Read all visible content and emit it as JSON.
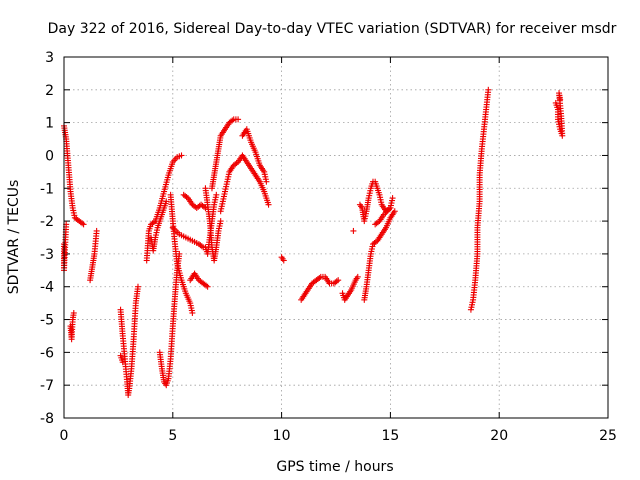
{
  "chart_data": {
    "type": "scatter",
    "title": "Day 322 of 2016, Sidereal Day-to-day VTEC variation (SDTVAR) for receiver msdr",
    "xlabel": "GPS time / hours",
    "ylabel": "SDTVAR / TECUs",
    "xlim": [
      0,
      25
    ],
    "ylim": [
      -8,
      3
    ],
    "xticks": [
      0,
      5,
      10,
      15,
      20,
      25
    ],
    "yticks": [
      -8,
      -7,
      -6,
      -5,
      -4,
      -3,
      -2,
      -1,
      0,
      1,
      2,
      3
    ],
    "grid": true,
    "marker": "+",
    "color": "#ee0000",
    "series": [
      {
        "name": "msdr",
        "segments": [
          [
            [
              0.0,
              0.9
            ],
            [
              0.1,
              0.5
            ],
            [
              0.2,
              -0.3
            ],
            [
              0.3,
              -1.1
            ],
            [
              0.4,
              -1.6
            ],
            [
              0.5,
              -1.9
            ],
            [
              0.7,
              -2.0
            ],
            [
              0.9,
              -2.1
            ]
          ],
          [
            [
              0.0,
              -2.7
            ],
            [
              0.0,
              -3.5
            ],
            [
              0.1,
              -2.1
            ]
          ],
          [
            [
              0.3,
              -5.2
            ],
            [
              0.35,
              -5.6
            ],
            [
              0.4,
              -5.0
            ],
            [
              0.45,
              -4.8
            ]
          ],
          [
            [
              1.2,
              -3.8
            ],
            [
              1.3,
              -3.4
            ],
            [
              1.4,
              -3.0
            ],
            [
              1.5,
              -2.3
            ]
          ],
          [
            [
              2.6,
              -4.7
            ],
            [
              2.7,
              -5.5
            ],
            [
              2.8,
              -6.2
            ],
            [
              2.9,
              -6.9
            ],
            [
              2.95,
              -7.3
            ],
            [
              3.0,
              -7.1
            ],
            [
              3.1,
              -6.5
            ],
            [
              3.2,
              -5.6
            ],
            [
              3.3,
              -4.5
            ],
            [
              3.4,
              -4.0
            ]
          ],
          [
            [
              2.6,
              -6.1
            ],
            [
              2.7,
              -6.3
            ]
          ],
          [
            [
              3.8,
              -3.2
            ],
            [
              3.9,
              -2.3
            ],
            [
              4.0,
              -2.1
            ],
            [
              4.2,
              -2.0
            ],
            [
              4.4,
              -1.6
            ],
            [
              4.6,
              -1.1
            ],
            [
              4.8,
              -0.6
            ],
            [
              5.0,
              -0.2
            ],
            [
              5.2,
              -0.05
            ],
            [
              5.4,
              0.0
            ]
          ],
          [
            [
              4.0,
              -2.5
            ],
            [
              4.1,
              -2.9
            ],
            [
              4.2,
              -2.5
            ],
            [
              4.3,
              -2.2
            ],
            [
              4.5,
              -1.8
            ],
            [
              4.7,
              -1.4
            ]
          ],
          [
            [
              4.4,
              -6.0
            ],
            [
              4.5,
              -6.5
            ],
            [
              4.6,
              -6.9
            ],
            [
              4.7,
              -7.0
            ],
            [
              4.8,
              -6.8
            ],
            [
              4.9,
              -6.2
            ],
            [
              5.0,
              -5.2
            ],
            [
              5.1,
              -4.3
            ],
            [
              5.2,
              -3.5
            ],
            [
              5.3,
              -3.0
            ]
          ],
          [
            [
              4.9,
              -1.2
            ],
            [
              5.0,
              -2.0
            ],
            [
              5.1,
              -2.7
            ],
            [
              5.2,
              -3.3
            ],
            [
              5.4,
              -3.8
            ],
            [
              5.6,
              -4.2
            ],
            [
              5.8,
              -4.5
            ],
            [
              5.9,
              -4.8
            ]
          ],
          [
            [
              5.0,
              -2.2
            ],
            [
              5.3,
              -2.4
            ],
            [
              5.6,
              -2.5
            ],
            [
              5.9,
              -2.6
            ],
            [
              6.2,
              -2.7
            ],
            [
              6.4,
              -2.8
            ]
          ],
          [
            [
              5.5,
              -1.2
            ],
            [
              5.7,
              -1.3
            ],
            [
              5.9,
              -1.5
            ],
            [
              6.1,
              -1.6
            ],
            [
              6.3,
              -1.5
            ],
            [
              6.5,
              -1.6
            ]
          ],
          [
            [
              5.8,
              -3.8
            ],
            [
              6.0,
              -3.6
            ],
            [
              6.2,
              -3.8
            ],
            [
              6.4,
              -3.9
            ],
            [
              6.6,
              -4.0
            ]
          ],
          [
            [
              6.5,
              -2.8
            ],
            [
              6.6,
              -3.0
            ],
            [
              6.7,
              -2.5
            ],
            [
              6.8,
              -2.0
            ],
            [
              6.9,
              -1.5
            ],
            [
              7.0,
              -1.2
            ]
          ],
          [
            [
              6.5,
              -1.0
            ],
            [
              6.6,
              -1.5
            ],
            [
              6.7,
              -2.0
            ],
            [
              6.8,
              -2.8
            ],
            [
              6.9,
              -3.2
            ],
            [
              7.0,
              -2.8
            ],
            [
              7.1,
              -2.3
            ],
            [
              7.2,
              -2.0
            ]
          ],
          [
            [
              6.8,
              -1.0
            ],
            [
              6.9,
              -0.6
            ],
            [
              7.0,
              -0.2
            ],
            [
              7.1,
              0.2
            ],
            [
              7.2,
              0.6
            ],
            [
              7.4,
              0.8
            ],
            [
              7.6,
              1.0
            ],
            [
              7.8,
              1.1
            ],
            [
              8.0,
              1.1
            ]
          ],
          [
            [
              7.2,
              -1.7
            ],
            [
              7.3,
              -1.4
            ],
            [
              7.4,
              -1.1
            ],
            [
              7.5,
              -0.8
            ],
            [
              7.6,
              -0.5
            ],
            [
              7.8,
              -0.3
            ],
            [
              8.0,
              -0.2
            ],
            [
              8.2,
              0.0
            ],
            [
              8.4,
              -0.2
            ],
            [
              8.6,
              -0.4
            ],
            [
              8.8,
              -0.6
            ],
            [
              9.0,
              -0.8
            ],
            [
              9.2,
              -1.1
            ],
            [
              9.4,
              -1.5
            ]
          ],
          [
            [
              8.2,
              0.6
            ],
            [
              8.4,
              0.8
            ],
            [
              8.6,
              0.4
            ],
            [
              8.8,
              0.1
            ],
            [
              9.0,
              -0.3
            ],
            [
              9.2,
              -0.5
            ],
            [
              9.3,
              -0.8
            ]
          ],
          [
            [
              10.0,
              -3.1
            ],
            [
              10.1,
              -3.2
            ]
          ],
          [
            [
              10.9,
              -4.4
            ],
            [
              11.0,
              -4.3
            ],
            [
              11.2,
              -4.1
            ],
            [
              11.4,
              -3.9
            ],
            [
              11.6,
              -3.8
            ],
            [
              11.8,
              -3.7
            ],
            [
              12.0,
              -3.7
            ],
            [
              12.2,
              -3.9
            ],
            [
              12.4,
              -3.9
            ],
            [
              12.6,
              -3.8
            ]
          ],
          [
            [
              12.8,
              -4.2
            ],
            [
              12.9,
              -4.4
            ],
            [
              13.0,
              -4.3
            ],
            [
              13.2,
              -4.1
            ],
            [
              13.4,
              -3.8
            ],
            [
              13.5,
              -3.7
            ]
          ],
          [
            [
              13.3,
              -2.3
            ]
          ],
          [
            [
              13.6,
              -1.5
            ],
            [
              13.7,
              -1.6
            ],
            [
              13.8,
              -2.0
            ],
            [
              13.9,
              -1.7
            ],
            [
              14.0,
              -1.3
            ],
            [
              14.1,
              -1.0
            ],
            [
              14.2,
              -0.8
            ],
            [
              14.3,
              -0.8
            ],
            [
              14.4,
              -1.0
            ],
            [
              14.5,
              -1.2
            ],
            [
              14.6,
              -1.5
            ],
            [
              14.8,
              -1.7
            ],
            [
              15.0,
              -1.6
            ],
            [
              15.1,
              -1.3
            ]
          ],
          [
            [
              13.8,
              -4.4
            ],
            [
              13.9,
              -4.0
            ],
            [
              14.0,
              -3.5
            ],
            [
              14.1,
              -3.0
            ],
            [
              14.2,
              -2.7
            ],
            [
              14.4,
              -2.6
            ],
            [
              14.6,
              -2.4
            ],
            [
              14.8,
              -2.2
            ],
            [
              15.0,
              -1.9
            ],
            [
              15.2,
              -1.7
            ]
          ],
          [
            [
              14.3,
              -2.1
            ],
            [
              14.5,
              -2.0
            ],
            [
              14.7,
              -1.8
            ],
            [
              15.0,
              -1.6
            ]
          ],
          [
            [
              18.7,
              -4.7
            ],
            [
              18.8,
              -4.4
            ],
            [
              18.9,
              -3.8
            ],
            [
              19.0,
              -3.0
            ],
            [
              19.0,
              -2.2
            ],
            [
              19.1,
              -1.4
            ],
            [
              19.1,
              -0.6
            ],
            [
              19.2,
              0.2
            ],
            [
              19.3,
              0.8
            ],
            [
              19.4,
              1.4
            ],
            [
              19.5,
              2.0
            ]
          ],
          [
            [
              22.6,
              1.6
            ],
            [
              22.7,
              1.4
            ],
            [
              22.7,
              1.1
            ],
            [
              22.8,
              0.8
            ],
            [
              22.9,
              0.6
            ],
            [
              22.85,
              1.2
            ],
            [
              22.75,
              1.9
            ],
            [
              22.8,
              1.7
            ]
          ]
        ]
      }
    ]
  }
}
